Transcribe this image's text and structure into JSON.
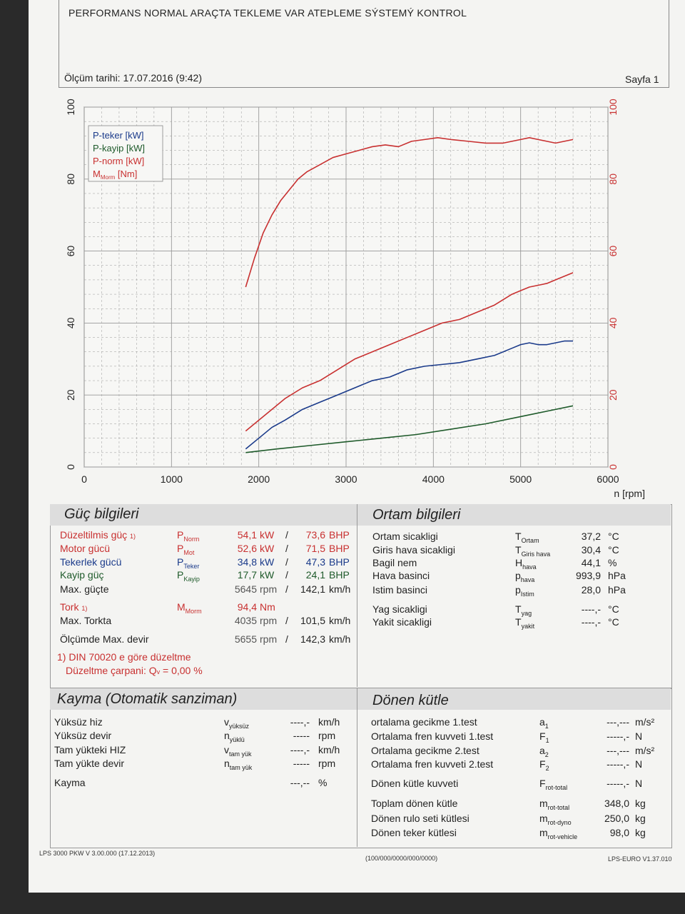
{
  "header": {
    "title": "PERFORMANS NORMAL ARAÇTA TEKLEME VAR ATEÞLEME SÝSTEMÝ KONTROL",
    "measurement_date": "Ölçüm tarihi: 17.07.2016 (9:42)",
    "page": "Sayfa 1"
  },
  "chart_data": {
    "type": "line",
    "xlabel": "n [rpm]",
    "xlim": [
      0,
      6000
    ],
    "ylim": [
      0,
      100
    ],
    "y2lim": [
      0,
      100
    ],
    "x_ticks": [
      "0",
      "1000",
      "2000",
      "3000",
      "4000",
      "5000",
      "6000"
    ],
    "y_ticks": [
      "0",
      "20",
      "40",
      "60",
      "80",
      "100"
    ],
    "y2_ticks": [
      "0",
      "20",
      "40",
      "60",
      "80",
      "100"
    ],
    "grid": true,
    "legend_position": "top-left",
    "series": [
      {
        "name": "P-teker [kW]",
        "color": "#1a3a8a",
        "x": [
          1850,
          2000,
          2150,
          2300,
          2500,
          2700,
          2900,
          3100,
          3300,
          3500,
          3700,
          3900,
          4100,
          4300,
          4500,
          4700,
          4900,
          5000,
          5100,
          5200,
          5300,
          5400,
          5500,
          5600
        ],
        "y": [
          5,
          8,
          11,
          13,
          16,
          18,
          20,
          22,
          24,
          25,
          27,
          28,
          28.5,
          29,
          30,
          31,
          33,
          34,
          34.5,
          34,
          34,
          34.5,
          35,
          35
        ]
      },
      {
        "name": "P-kayip [kW]",
        "color": "#1e5a2a",
        "x": [
          1850,
          2200,
          2600,
          3000,
          3400,
          3800,
          4200,
          4600,
          5000,
          5300,
          5600
        ],
        "y": [
          4,
          5,
          6,
          7,
          8,
          9,
          10.5,
          12,
          14,
          15.5,
          17
        ]
      },
      {
        "name": "P-norm [kW]",
        "color": "#c83030",
        "x": [
          1850,
          2000,
          2150,
          2300,
          2500,
          2700,
          2900,
          3100,
          3300,
          3500,
          3700,
          3900,
          4100,
          4300,
          4500,
          4700,
          4900,
          5000,
          5100,
          5200,
          5300,
          5400,
          5500,
          5600
        ],
        "y": [
          10,
          13,
          16,
          19,
          22,
          24,
          27,
          30,
          32,
          34,
          36,
          38,
          40,
          41,
          43,
          45,
          48,
          49,
          50,
          50.5,
          51,
          52,
          53,
          54
        ]
      },
      {
        "name": "M<sub>Morm</sub> [Nm]",
        "color": "#c83030",
        "axis": "right",
        "x": [
          1850,
          1950,
          2050,
          2150,
          2250,
          2350,
          2450,
          2550,
          2700,
          2850,
          3000,
          3150,
          3300,
          3450,
          3600,
          3750,
          3900,
          4050,
          4200,
          4400,
          4600,
          4800,
          5000,
          5100,
          5200,
          5300,
          5400,
          5500,
          5600
        ],
        "y": [
          50,
          58,
          65,
          70,
          74,
          77,
          80,
          82,
          84,
          86,
          87,
          88,
          89,
          89.5,
          89,
          90.5,
          91,
          91.5,
          91,
          90.5,
          90,
          90,
          91,
          91.5,
          91,
          90.5,
          90,
          90.5,
          91
        ]
      }
    ]
  },
  "guc": {
    "heading": "Güç bilgileri",
    "rows": [
      {
        "label": "Düzeltilmis güç",
        "note": "1)",
        "sym": "P",
        "sub": "Norm",
        "val": "54,1",
        "unit": "kW",
        "sep": "/",
        "val2": "73,6",
        "unit2": "BHP",
        "color": "red"
      },
      {
        "label": "Motor gücü",
        "note": "",
        "sym": "P",
        "sub": "Mot",
        "val": "52,6",
        "unit": "kW",
        "sep": "/",
        "val2": "71,5",
        "unit2": "BHP",
        "color": "red"
      },
      {
        "label": "Tekerlek gücü",
        "note": "",
        "sym": "P",
        "sub": "Teker",
        "val": "34,8",
        "unit": "kW",
        "sep": "/",
        "val2": "47,3",
        "unit2": "BHP",
        "color": "blue"
      },
      {
        "label": "Kayip güç",
        "note": "",
        "sym": "P",
        "sub": "Kayip",
        "val": "17,7",
        "unit": "kW",
        "sep": "/",
        "val2": "24,1",
        "unit2": "BHP",
        "color": "green"
      },
      {
        "label": "Max. güçte",
        "note": "",
        "sym": "",
        "sub": "",
        "val": "5645",
        "unit": "rpm",
        "sep": "/",
        "val2": "142,1",
        "unit2": "km/h",
        "color": "black"
      },
      {
        "label": "Tork",
        "note": "1)",
        "sym": "M",
        "sub": "Morm",
        "val": "94,4",
        "unit": "Nm",
        "sep": "",
        "val2": "",
        "unit2": "",
        "color": "red"
      },
      {
        "label": "Max. Torkta",
        "note": "",
        "sym": "",
        "sub": "",
        "val": "4035",
        "unit": "rpm",
        "sep": "/",
        "val2": "101,5",
        "unit2": "km/h",
        "color": "black"
      },
      {
        "label": "Ölçümde Max. devir",
        "note": "",
        "sym": "",
        "sub": "",
        "val": "5655",
        "unit": "rpm",
        "sep": "/",
        "val2": "142,3",
        "unit2": "km/h",
        "color": "black"
      }
    ],
    "din_note": "1) DIN 70020 e göre düzeltme",
    "factor_label": "Düzeltme çarpani: Q",
    "factor_sub": "v",
    "factor_value": "=   0,00 %"
  },
  "ortam": {
    "heading": "Ortam bilgileri",
    "rows": [
      {
        "label": "Ortam sicakligi",
        "sym": "T",
        "sub": "Ortam",
        "val": "37,2",
        "unit": "°C"
      },
      {
        "label": "Giris hava sicakligi",
        "sym": "T",
        "sub": "Giris hava",
        "val": "30,4",
        "unit": "°C"
      },
      {
        "label": "Bagil nem",
        "sym": "H",
        "sub": "hava",
        "val": "44,1",
        "unit": "%"
      },
      {
        "label": "Hava basinci",
        "sym": "p",
        "sub": "hava",
        "val": "993,9",
        "unit": "hPa"
      },
      {
        "label": "Istim basinci",
        "sym": "p",
        "sub": "Istim",
        "val": "28,0",
        "unit": "hPa"
      },
      {
        "label": "Yag sicakligi",
        "sym": "T",
        "sub": "yag",
        "val": "----,-",
        "unit": "°C"
      },
      {
        "label": "Yakit sicakligi",
        "sym": "T",
        "sub": "yakit",
        "val": "----,-",
        "unit": "°C"
      }
    ]
  },
  "kayma": {
    "heading": "Kayma (Otomatik sanziman)",
    "rows": [
      {
        "label": "Yüksüz hiz",
        "sym": "v",
        "sub": "yüksüz",
        "val": "----,-",
        "unit": "km/h"
      },
      {
        "label": "Yüksüz devir",
        "sym": "n",
        "sub": "yüklü",
        "val": "-----",
        "unit": "rpm"
      },
      {
        "label": "Tam yükteki HIZ",
        "sym": "v",
        "sub": "tam yük",
        "val": "----,-",
        "unit": "km/h"
      },
      {
        "label": "Tam yükte devir",
        "sym": "n",
        "sub": "tam yük",
        "val": "-----",
        "unit": "rpm"
      },
      {
        "label": "Kayma",
        "sym": "",
        "sub": "",
        "val": "---,--",
        "unit": "%"
      }
    ]
  },
  "donen": {
    "heading": "Dönen kütle",
    "rows": [
      {
        "label": "ortalama gecikme 1.test",
        "sym": "a",
        "sub": "1",
        "val": "---,---",
        "unit": "m/s²"
      },
      {
        "label": "Ortalama fren kuvveti 1.test",
        "sym": "F",
        "sub": "1",
        "val": "-----,-",
        "unit": "N"
      },
      {
        "label": "Ortalama gecikme 2.test",
        "sym": "a",
        "sub": "2",
        "val": "---,---",
        "unit": "m/s²"
      },
      {
        "label": "Ortalama fren kuvveti 2.test",
        "sym": "F",
        "sub": "2",
        "val": "-----,-",
        "unit": "N"
      },
      {
        "label": "Dönen kütle kuvveti",
        "sym": "F",
        "sub": "rot-total",
        "val": "-----,-",
        "unit": "N"
      },
      {
        "label": "Toplam dönen kütle",
        "sym": "m",
        "sub": "rot-total",
        "val": "348,0",
        "unit": "kg"
      },
      {
        "label": "Dönen rulo seti kütlesi",
        "sym": "m",
        "sub": "rot-dyno",
        "val": "250,0",
        "unit": "kg"
      },
      {
        "label": "Dönen teker kütlesi",
        "sym": "m",
        "sub": "rot-vehicle",
        "val": "98,0",
        "unit": "kg"
      }
    ]
  },
  "footer": {
    "left": "LPS 3000 PKW V 3.00.000 (17.12.2013)",
    "center": "(100/000/0000/000/0000)",
    "right": "LPS-EURO V1.37.010"
  }
}
